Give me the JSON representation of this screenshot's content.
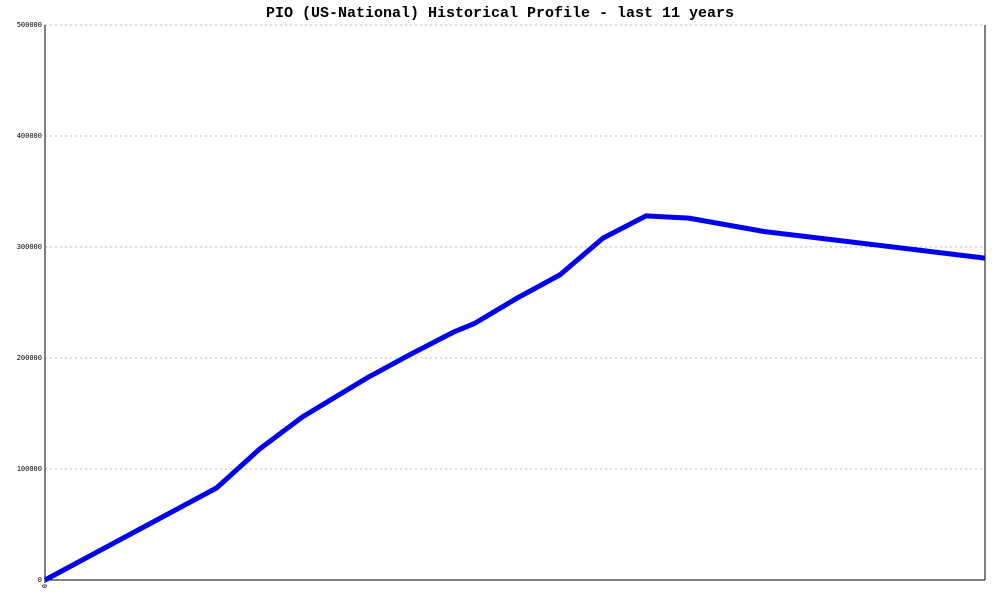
{
  "chart_data": {
    "type": "line",
    "title": "PIO (US-National) Historical Profile - last 11 years",
    "x": [
      0,
      4,
      5,
      6,
      7.5,
      8.5,
      9.5,
      10,
      11,
      12,
      13,
      14,
      15,
      16.75,
      21.9
    ],
    "series": [
      {
        "name": "PIO",
        "color": "#0000ee",
        "values": [
          0,
          83000,
          118000,
          147000,
          182000,
          203000,
          223000,
          231000,
          254000,
          275000,
          308000,
          328000,
          326000,
          314000,
          290000
        ]
      }
    ],
    "xlim": [
      0,
      21.9
    ],
    "xticks": [
      0
    ],
    "ylim": [
      0,
      500000
    ],
    "yticks": [
      0,
      100000,
      200000,
      300000,
      400000,
      500000
    ],
    "grid": true
  }
}
